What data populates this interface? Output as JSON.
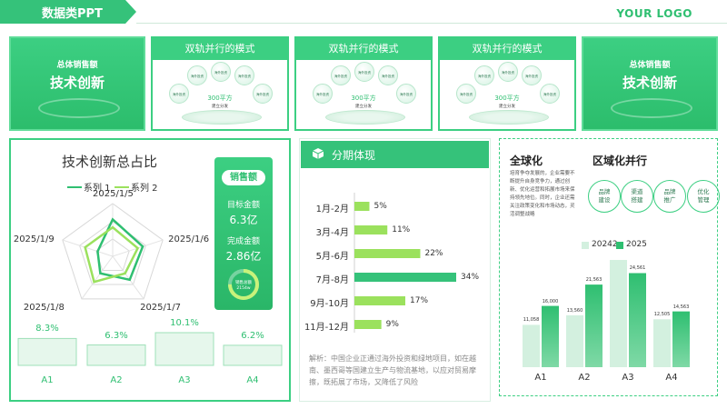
{
  "header": {
    "title": "数据类PPT",
    "logo": "YOUR LOGO"
  },
  "top_cards": {
    "left": {
      "sub": "总体销售额",
      "main": "技术创新"
    },
    "right": {
      "sub": "总体销售额",
      "main": "技术创新"
    },
    "modes": [
      {
        "title": "双轨并行的模式",
        "center": "300平方",
        "center_sub": "建立分发",
        "bubbles": [
          "海外投资",
          "海外投资",
          "海外投资",
          "海外投资",
          "海外投资"
        ]
      },
      {
        "title": "双轨并行的模式",
        "center": "300平方",
        "center_sub": "建立分发",
        "bubbles": [
          "海外投资",
          "海外投资",
          "海外投资",
          "海外投资",
          "海外投资"
        ]
      },
      {
        "title": "双轨并行的模式",
        "center": "300平方",
        "center_sub": "建立分发",
        "bubbles": [
          "海外投资",
          "海外投资",
          "海外投资",
          "海外投资",
          "海外投资"
        ]
      }
    ]
  },
  "left_panel": {
    "title": "技术创新总占比",
    "sales": {
      "pill": "销售额",
      "target_label": "目标金额",
      "target_value": "6.3亿",
      "done_label": "完成金额",
      "done_value": "2.86亿",
      "ring_label": "销售总额",
      "ring_value": "2154w"
    }
  },
  "middle_panel": {
    "header": "分期体现",
    "analysis": "解析：中国企业正通过海外投资和绿地项目，如在越南、墨西哥等国建立生产与物流基地，以应对贸易摩擦，既拓展了市场，又降低了风险"
  },
  "right_panel": {
    "title_left": "全球化",
    "title_right": "区域化并行",
    "paragraph": "培育争夺发展的，企业需要不断提升自身竞争力，通过创新、优化运营和拓展市场来保持领先地位。同时，企业还需关注政策变化和市场动态，灵活调整战略",
    "circles": [
      "品牌\n建设",
      "渠道\n搭建",
      "品牌\n推广",
      "优化\n管理"
    ]
  },
  "colors": {
    "accent": "#2fbf71",
    "dark": "#28b364",
    "light": "#d3f0df",
    "series1": "#2fbf71",
    "series2": "#9be15d"
  },
  "chart_data": [
    {
      "type": "radar",
      "axes": [
        "2025/1/5",
        "2025/1/6",
        "2025/1/7",
        "2025/1/8",
        "2025/1/9"
      ],
      "series": [
        {
          "name": "系列 1",
          "values": [
            70,
            60,
            55,
            40,
            30
          ]
        },
        {
          "name": "系列 2",
          "values": [
            55,
            50,
            40,
            60,
            55
          ]
        }
      ],
      "legend": "top"
    },
    {
      "type": "bar",
      "categories": [
        "A1",
        "A2",
        "A3",
        "A4"
      ],
      "values": [
        8.3,
        6.3,
        10.1,
        6.2
      ],
      "labels": [
        "8.3%",
        "6.3%",
        "10.1%",
        "6.2%"
      ]
    },
    {
      "type": "progress",
      "label": "销售总额",
      "value_text": "2154w",
      "fraction": 0.75
    },
    {
      "type": "bar",
      "orientation": "horizontal",
      "categories": [
        "1月-2月",
        "3月-4月",
        "5月-6月",
        "7月-8月",
        "9月-10月",
        "11月-12月"
      ],
      "values": [
        5,
        11,
        22,
        34,
        17,
        9
      ],
      "labels": [
        "5%",
        "11%",
        "22%",
        "34%",
        "17%",
        "9%"
      ],
      "highlight": "7月-8月"
    },
    {
      "type": "bar",
      "categories": [
        "A1",
        "A2",
        "A3",
        "A4"
      ],
      "series": [
        {
          "name": "20242",
          "values": [
            11058,
            13560,
            28000,
            12505
          ],
          "labels": [
            "11,058",
            "13,560",
            "",
            "12,505"
          ]
        },
        {
          "name": "2025",
          "values": [
            16000,
            21563,
            24561,
            14563
          ],
          "labels": [
            "16,000",
            "21,563",
            "24,561",
            "14,563"
          ]
        }
      ],
      "legend": "top"
    }
  ]
}
